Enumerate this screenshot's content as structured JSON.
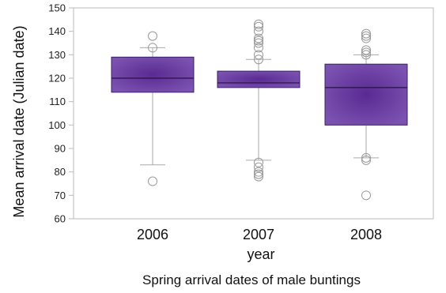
{
  "chart_data": {
    "type": "box",
    "title": "",
    "caption": "Spring arrival dates of male buntings",
    "xlabel": "year",
    "ylabel": "Mean arrival date  (Julian date)",
    "ylim": [
      60,
      150
    ],
    "yticks": [
      60,
      70,
      80,
      90,
      100,
      110,
      120,
      130,
      140,
      150
    ],
    "categories": [
      "2006",
      "2007",
      "2008"
    ],
    "boxes": [
      {
        "category": "2006",
        "q1": 114,
        "median": 120,
        "q3": 129,
        "whisker_low": 83,
        "whisker_high": 133,
        "outliers": [
          76,
          133,
          138
        ]
      },
      {
        "category": "2007",
        "q1": 116,
        "median": 118,
        "q3": 123,
        "whisker_low": 85,
        "whisker_high": 128,
        "outliers": [
          78,
          79,
          80,
          82,
          84,
          128,
          130,
          133,
          135,
          136,
          137,
          140,
          142,
          143
        ]
      },
      {
        "category": "2008",
        "q1": 100,
        "median": 116,
        "q3": 126,
        "whisker_low": 86,
        "whisker_high": 130,
        "outliers": [
          70,
          85,
          86,
          130,
          131,
          132,
          137,
          138,
          139
        ]
      }
    ],
    "grid": false,
    "colors": {
      "box_fill": "#6b3fa0",
      "box_edge": "#3d1f66",
      "whisker": "#aaaaaa",
      "outlier": "#999999",
      "axis": "#bbbbbb"
    }
  }
}
